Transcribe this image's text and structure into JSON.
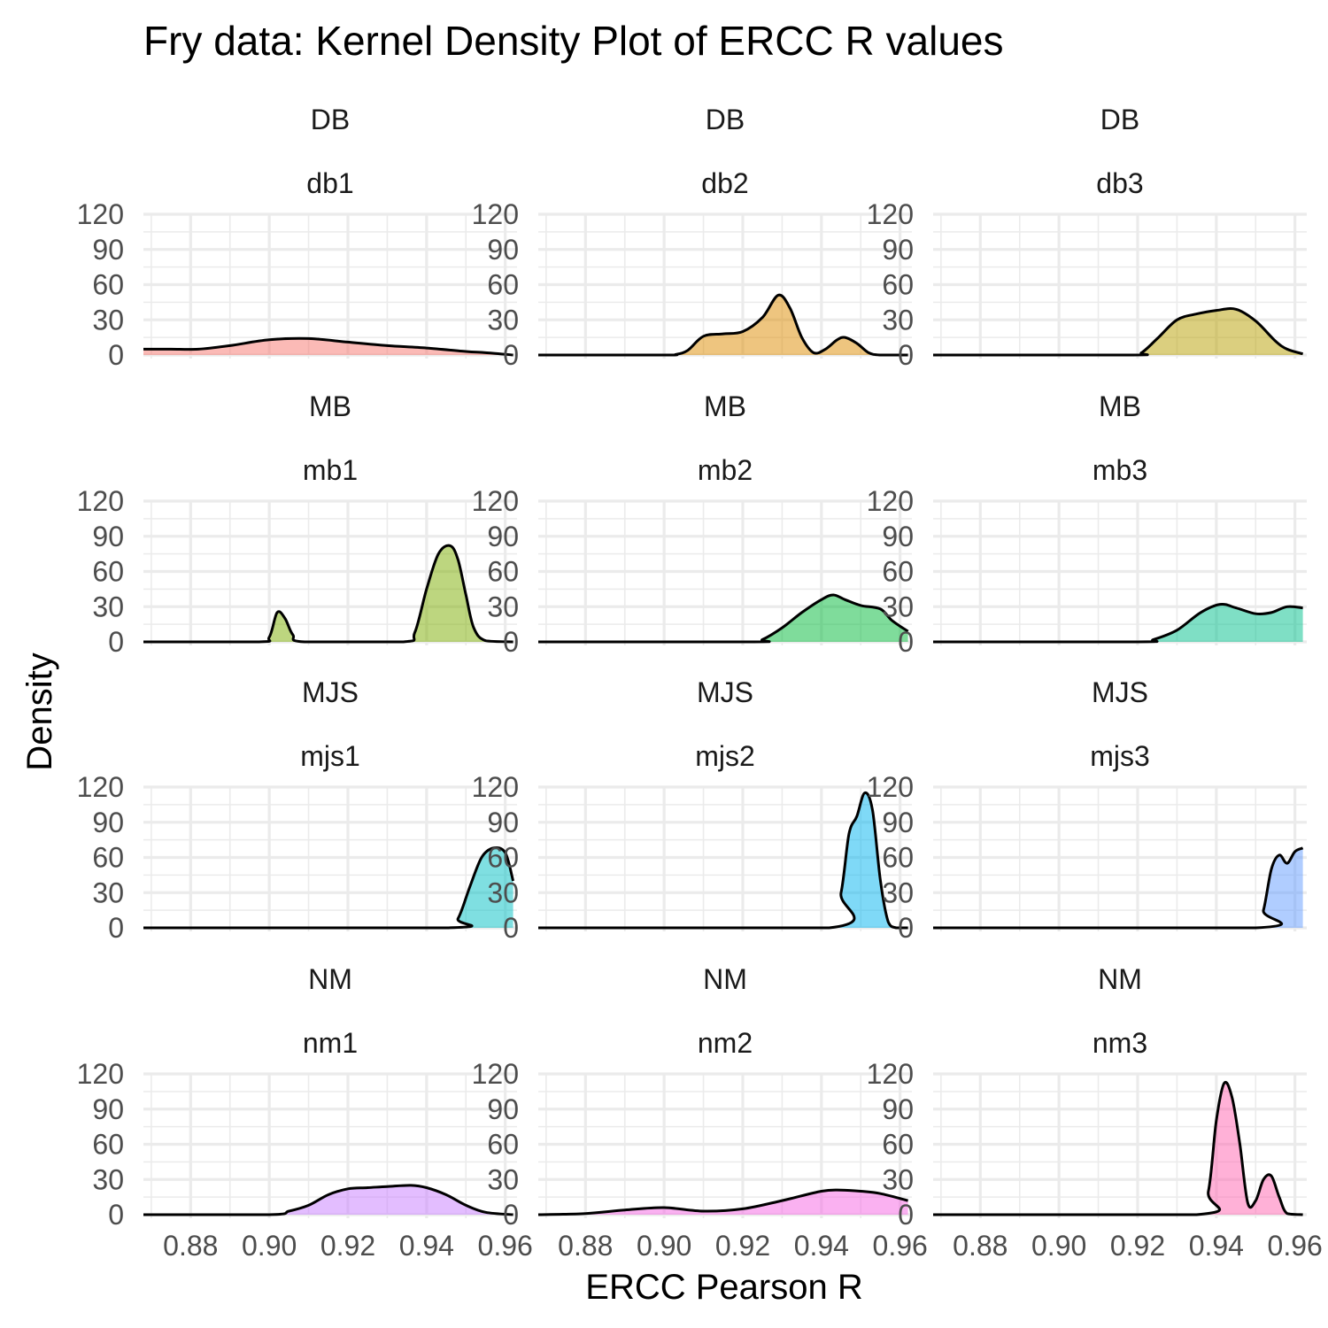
{
  "chart_data": {
    "type": "area",
    "title": "Fry data: Kernel Density Plot of ERCC R values",
    "xlabel": "ERCC Pearson R",
    "ylabel": "Density",
    "xlim": [
      0.868,
      0.963
    ],
    "ylim": [
      0,
      120
    ],
    "x_ticks": [
      0.88,
      0.9,
      0.92,
      0.94,
      0.96
    ],
    "x_tick_labels": [
      "0.88",
      "0.90",
      "0.92",
      "0.94",
      "0.96"
    ],
    "y_ticks": [
      0,
      30,
      60,
      90,
      120
    ],
    "y_tick_labels": [
      "0",
      "30",
      "60",
      "90",
      "120"
    ],
    "grid": true,
    "facets": [
      {
        "group": "DB",
        "sample": "db1",
        "color": "#F8766D",
        "points": [
          [
            0.868,
            5
          ],
          [
            0.875,
            5
          ],
          [
            0.882,
            5
          ],
          [
            0.89,
            8
          ],
          [
            0.9,
            13
          ],
          [
            0.91,
            14
          ],
          [
            0.92,
            11
          ],
          [
            0.93,
            8
          ],
          [
            0.94,
            6
          ],
          [
            0.95,
            3
          ],
          [
            0.955,
            2
          ],
          [
            0.962,
            0
          ]
        ]
      },
      {
        "group": "DB",
        "sample": "db2",
        "color": "#DE8C00",
        "points": [
          [
            0.868,
            0
          ],
          [
            0.9,
            0
          ],
          [
            0.903,
            0.5
          ],
          [
            0.906,
            4
          ],
          [
            0.91,
            16
          ],
          [
            0.915,
            18
          ],
          [
            0.92,
            20
          ],
          [
            0.925,
            32
          ],
          [
            0.929,
            51
          ],
          [
            0.932,
            40
          ],
          [
            0.935,
            15
          ],
          [
            0.938,
            2
          ],
          [
            0.941,
            5
          ],
          [
            0.944,
            13
          ],
          [
            0.946,
            15
          ],
          [
            0.949,
            10
          ],
          [
            0.952,
            2
          ],
          [
            0.955,
            0
          ],
          [
            0.962,
            0
          ]
        ]
      },
      {
        "group": "DB",
        "sample": "db3",
        "color": "#B79F00",
        "points": [
          [
            0.868,
            0
          ],
          [
            0.918,
            0
          ],
          [
            0.921,
            2
          ],
          [
            0.925,
            14
          ],
          [
            0.93,
            30
          ],
          [
            0.935,
            35
          ],
          [
            0.94,
            38
          ],
          [
            0.945,
            39
          ],
          [
            0.95,
            29
          ],
          [
            0.955,
            12
          ],
          [
            0.958,
            5
          ],
          [
            0.962,
            1
          ]
        ]
      },
      {
        "group": "MB",
        "sample": "mb1",
        "color": "#7CAE00",
        "points": [
          [
            0.868,
            0
          ],
          [
            0.897,
            0
          ],
          [
            0.9,
            4
          ],
          [
            0.902,
            25
          ],
          [
            0.904,
            20
          ],
          [
            0.906,
            6
          ],
          [
            0.909,
            0
          ],
          [
            0.934,
            0
          ],
          [
            0.937,
            8
          ],
          [
            0.94,
            45
          ],
          [
            0.943,
            75
          ],
          [
            0.946,
            82
          ],
          [
            0.948,
            70
          ],
          [
            0.95,
            40
          ],
          [
            0.952,
            12
          ],
          [
            0.955,
            1
          ],
          [
            0.962,
            0
          ]
        ]
      },
      {
        "group": "MB",
        "sample": "mb2",
        "color": "#00BA38",
        "points": [
          [
            0.868,
            0
          ],
          [
            0.922,
            0
          ],
          [
            0.925,
            2
          ],
          [
            0.93,
            12
          ],
          [
            0.935,
            25
          ],
          [
            0.94,
            36
          ],
          [
            0.943,
            40
          ],
          [
            0.946,
            36
          ],
          [
            0.95,
            31
          ],
          [
            0.955,
            28
          ],
          [
            0.958,
            18
          ],
          [
            0.962,
            9
          ]
        ]
      },
      {
        "group": "MB",
        "sample": "mb3",
        "color": "#00C08B",
        "points": [
          [
            0.868,
            0
          ],
          [
            0.92,
            0
          ],
          [
            0.924,
            2
          ],
          [
            0.93,
            10
          ],
          [
            0.936,
            25
          ],
          [
            0.941,
            32
          ],
          [
            0.945,
            29
          ],
          [
            0.95,
            24
          ],
          [
            0.954,
            25
          ],
          [
            0.958,
            30
          ],
          [
            0.962,
            29
          ]
        ]
      },
      {
        "group": "MJS",
        "sample": "mjs1",
        "color": "#00BFC4",
        "points": [
          [
            0.868,
            0
          ],
          [
            0.945,
            0
          ],
          [
            0.948,
            8
          ],
          [
            0.951,
            35
          ],
          [
            0.954,
            60
          ],
          [
            0.957,
            68
          ],
          [
            0.96,
            64
          ],
          [
            0.962,
            40
          ]
        ]
      },
      {
        "group": "MJS",
        "sample": "mjs2",
        "color": "#00B4F0",
        "points": [
          [
            0.868,
            0
          ],
          [
            0.942,
            0
          ],
          [
            0.945,
            30
          ],
          [
            0.947,
            80
          ],
          [
            0.949,
            95
          ],
          [
            0.951,
            115
          ],
          [
            0.953,
            100
          ],
          [
            0.955,
            40
          ],
          [
            0.957,
            5
          ],
          [
            0.959,
            0
          ],
          [
            0.962,
            0
          ]
        ]
      },
      {
        "group": "MJS",
        "sample": "mjs3",
        "color": "#619CFF",
        "points": [
          [
            0.868,
            0
          ],
          [
            0.95,
            0
          ],
          [
            0.952,
            15
          ],
          [
            0.954,
            50
          ],
          [
            0.956,
            62
          ],
          [
            0.958,
            55
          ],
          [
            0.96,
            65
          ],
          [
            0.962,
            68
          ]
        ]
      },
      {
        "group": "NM",
        "sample": "nm1",
        "color": "#C77CFF",
        "points": [
          [
            0.868,
            0
          ],
          [
            0.9,
            0
          ],
          [
            0.905,
            3
          ],
          [
            0.91,
            8
          ],
          [
            0.915,
            17
          ],
          [
            0.92,
            22
          ],
          [
            0.925,
            23
          ],
          [
            0.93,
            24
          ],
          [
            0.936,
            25
          ],
          [
            0.94,
            23
          ],
          [
            0.945,
            17
          ],
          [
            0.95,
            8
          ],
          [
            0.955,
            2
          ],
          [
            0.962,
            0
          ]
        ]
      },
      {
        "group": "NM",
        "sample": "nm2",
        "color": "#F564E3",
        "points": [
          [
            0.868,
            0
          ],
          [
            0.88,
            1
          ],
          [
            0.89,
            4
          ],
          [
            0.9,
            6
          ],
          [
            0.91,
            3
          ],
          [
            0.92,
            5
          ],
          [
            0.93,
            12
          ],
          [
            0.94,
            20
          ],
          [
            0.945,
            21
          ],
          [
            0.95,
            20
          ],
          [
            0.955,
            18
          ],
          [
            0.962,
            12
          ]
        ]
      },
      {
        "group": "NM",
        "sample": "nm3",
        "color": "#FF64B0",
        "points": [
          [
            0.868,
            0
          ],
          [
            0.935,
            0
          ],
          [
            0.938,
            20
          ],
          [
            0.94,
            80
          ],
          [
            0.942,
            112
          ],
          [
            0.944,
            100
          ],
          [
            0.946,
            60
          ],
          [
            0.948,
            10
          ],
          [
            0.95,
            12
          ],
          [
            0.952,
            30
          ],
          [
            0.954,
            33
          ],
          [
            0.956,
            15
          ],
          [
            0.958,
            1
          ],
          [
            0.962,
            0
          ]
        ]
      }
    ]
  }
}
